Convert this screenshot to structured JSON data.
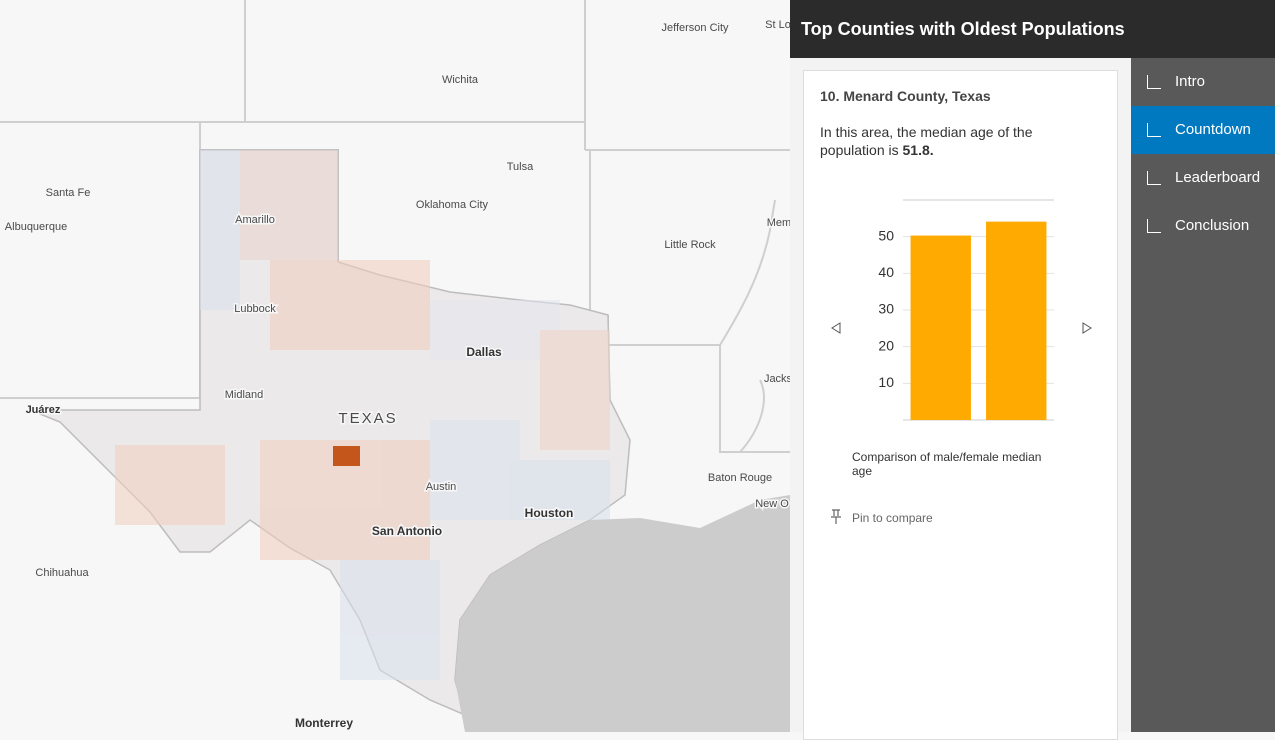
{
  "header": {
    "title": "Top Counties with Oldest Populations"
  },
  "map": {
    "labels": [
      "Jefferson City",
      "St Lo",
      "Wichita",
      "Tulsa",
      "Santa Fe",
      "Albuquerque",
      "Amarillo",
      "Oklahoma City",
      "Little Rock",
      "Mem",
      "Lubbock",
      "Dallas",
      "Jacks",
      "Midland",
      "Juárez",
      "TEXAS",
      "Austin",
      "Baton Rouge",
      "Houston",
      "New O",
      "San Antonio",
      "Chihuahua",
      "Monterrey"
    ]
  },
  "panel": {
    "heading": "10. Menard County, Texas",
    "summary": "In this area, the median age of the population is",
    "summary_value": "51.8.",
    "caption": "Comparison of male/female median age",
    "pin": "Pin to compare"
  },
  "nav": {
    "items": [
      "Intro",
      "Countdown",
      "Leaderboard",
      "Conclusion"
    ],
    "active": 1
  },
  "chart_data": {
    "type": "bar",
    "categories": [
      null,
      null
    ],
    "values": [
      50.3,
      54.1
    ],
    "color": "#ffaa00",
    "ylim": [
      0,
      60
    ],
    "yticks": [
      10,
      20,
      30,
      40,
      50
    ],
    "grid": true
  }
}
